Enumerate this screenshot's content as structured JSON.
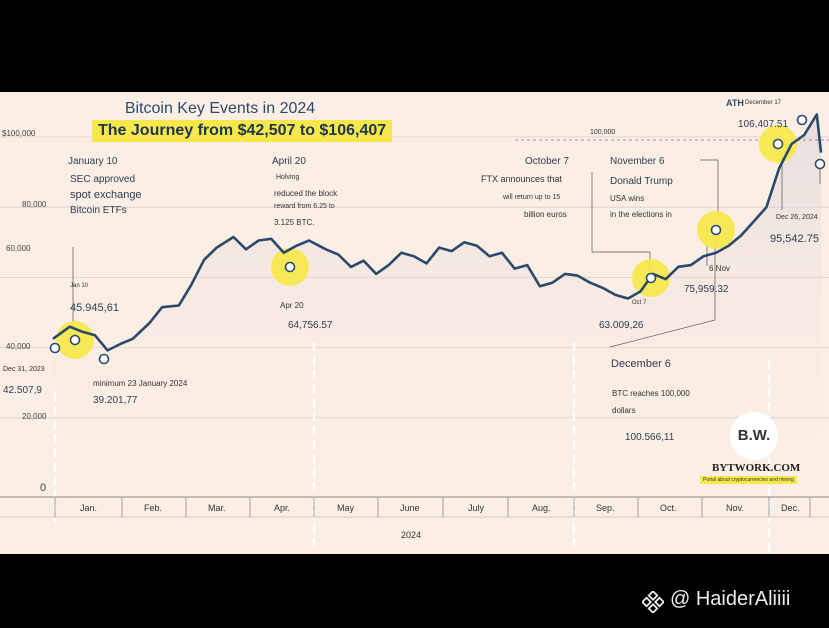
{
  "title": "Bitcoin Key Events in 2024",
  "subtitle": "The Journey from $42,507 to $106,407",
  "watermark": "@ HaiderAliiii",
  "logo": {
    "initials": "B.W.",
    "name": "BYTWORK.COM",
    "tagline": "Portal about cryptocurrencies and mining"
  },
  "colors": {
    "line": "#2b4a6b",
    "highlight": "#f6e84a",
    "background": "#fbeee4"
  },
  "chart_data": {
    "type": "line",
    "title": "Bitcoin Key Events in 2024",
    "xlabel": "2024",
    "ylabel": "",
    "ylim": [
      0,
      106407
    ],
    "y_ticks": [
      {
        "value": 0,
        "label": "0"
      },
      {
        "value": 20000,
        "label": "20,000"
      },
      {
        "value": 40000,
        "label": "40,000"
      },
      {
        "value": 60000,
        "label": "60,000"
      },
      {
        "value": 80000,
        "label": "80,000"
      },
      {
        "value": 100000,
        "label": "$100,000"
      }
    ],
    "months": [
      "Jan.",
      "Feb.",
      "Mar.",
      "Apr.",
      "May",
      "June",
      "July",
      "Aug.",
      "Sep.",
      "Oct.",
      "Nov.",
      "Dec."
    ],
    "series": [
      {
        "name": "BTC",
        "x": [
          0,
          8,
          14,
          20,
          26,
          32,
          38,
          46,
          52,
          60,
          66,
          72,
          78,
          86,
          92,
          98,
          104,
          110,
          116,
          122,
          130,
          136,
          142,
          148,
          154,
          160,
          166,
          172,
          178,
          184,
          190,
          196,
          202,
          208,
          214,
          220,
          226,
          232,
          238,
          244,
          250,
          256,
          262,
          268,
          274,
          280,
          286,
          292,
          298,
          304,
          310,
          316,
          322,
          328,
          334,
          340,
          346,
          352,
          358,
          364,
          366
        ],
        "values": [
          42508,
          45946,
          44500,
          43500,
          39202,
          41000,
          42500,
          47000,
          51500,
          52000,
          58000,
          65000,
          68500,
          71500,
          68000,
          70500,
          71000,
          67000,
          69000,
          70500,
          68000,
          66500,
          63000,
          64757,
          61000,
          63500,
          67000,
          66000,
          64000,
          68500,
          67500,
          70000,
          69000,
          66000,
          67000,
          62500,
          63500,
          57500,
          58500,
          61000,
          60500,
          58500,
          57000,
          55000,
          54000,
          56000,
          61000,
          59500,
          63009,
          63500,
          66000,
          67000,
          69000,
          72000,
          76000,
          80000,
          91000,
          98000,
          100566,
          106407,
          95543
        ]
      }
    ],
    "events": [
      {
        "date": "January 10",
        "lines": [
          "SEC approved",
          "spot exchange",
          "Bitcoin ETFs"
        ],
        "tag": "Jan 10",
        "price": "45.945,61"
      },
      {
        "date": "April 20",
        "lines": [
          "Holving",
          "reduced the block",
          "reward from 6.25 to",
          "3.125 BTC."
        ],
        "tag": "Apr 20",
        "price": "64,756.57"
      },
      {
        "date": "October 7",
        "lines": [
          "FTX announces that",
          "will return up to 15",
          "billion euros"
        ],
        "tag": "Oct 7",
        "price": "63.009,26"
      },
      {
        "date": "November 6",
        "lines": [
          "Donald Trump",
          "USA wins",
          "in the elections in"
        ],
        "tag": "6 Nov",
        "price": "75,959.32"
      },
      {
        "date": "December 6",
        "lines": [
          "BTC reaches 100,000",
          "dollars"
        ],
        "price": "100.566,11"
      },
      {
        "date": "December 17",
        "label": "ATH",
        "price": "106,407.51"
      },
      {
        "date": "Dec 26, 2024",
        "price": "95,542.75"
      },
      {
        "date": "Dec 31, 2023",
        "price": "42.507,9"
      },
      {
        "date": "minimum 23 January 2024",
        "price": "39.201,77"
      }
    ],
    "reference_line": "100,000"
  }
}
